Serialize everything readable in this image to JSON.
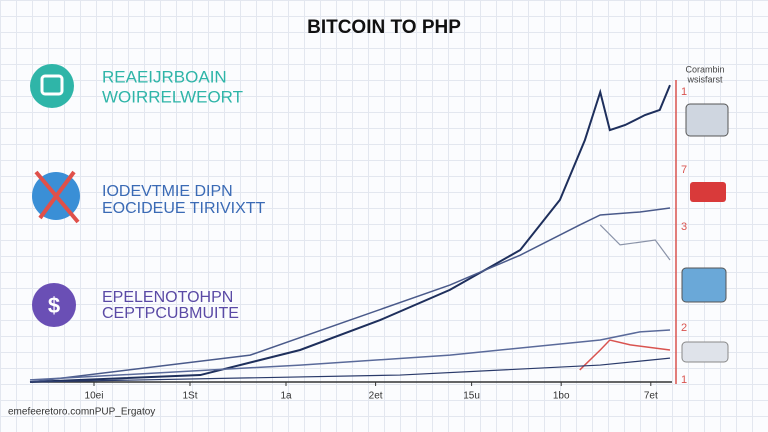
{
  "chart_data": {
    "type": "line",
    "title": "BITCOIN TO PHP",
    "xlim": [
      0,
      100
    ],
    "ylim": [
      0,
      100
    ],
    "xticks": [
      {
        "value": 10,
        "label": "10ei"
      },
      {
        "value": 25,
        "label": "1St"
      },
      {
        "value": 40,
        "label": "1a"
      },
      {
        "value": 54,
        "label": "2et"
      },
      {
        "value": 69,
        "label": "15u"
      },
      {
        "value": 83,
        "label": "1bo"
      },
      {
        "value": 97,
        "label": "7et"
      }
    ],
    "series": [
      {
        "color": "#1e2f5c",
        "width": 2,
        "x": [
          0,
          26.6,
          42.2,
          54.7,
          65.6,
          76.6,
          82.8,
          86.7,
          89.1,
          90.6,
          93,
          96.1,
          98.4,
          100
        ],
        "values": [
          0,
          2.3,
          10.6,
          20.5,
          30.5,
          43.7,
          60.3,
          80.1,
          96,
          83.4,
          85.1,
          88.4,
          90.1,
          98.3
        ]
      },
      {
        "color": "#4a5a8a",
        "width": 1.5,
        "x": [
          0,
          34.4,
          50,
          65.6,
          76.6,
          85.9,
          89.1,
          95.3,
          100
        ],
        "values": [
          0,
          8.9,
          20.5,
          32.1,
          42,
          52,
          55.3,
          56.3,
          57.6
        ]
      },
      {
        "color": "#8a93a8",
        "width": 1.2,
        "x": [
          89.1,
          92.2,
          97.7,
          100
        ],
        "values": [
          52,
          45.4,
          47,
          40.4
        ]
      },
      {
        "color": "#5a6a9a",
        "width": 1.5,
        "x": [
          0,
          42.2,
          65.6,
          89.1,
          95.3,
          100
        ],
        "values": [
          0.7,
          5.6,
          8.9,
          13.9,
          16.6,
          17.2
        ]
      },
      {
        "color": "#d9534f",
        "width": 1.5,
        "x": [
          85.9,
          89.1,
          90.6,
          93.8,
          100
        ],
        "values": [
          4,
          10.6,
          13.9,
          12.3,
          10.6
        ]
      },
      {
        "color": "#2a3a6a",
        "width": 1.2,
        "x": [
          0,
          57.8,
          89.1,
          100
        ],
        "values": [
          0,
          2.3,
          5.6,
          7.9
        ]
      }
    ],
    "side_labels": [
      "1",
      "7",
      "3",
      "2",
      "1"
    ]
  },
  "panels": [
    {
      "line1": "REAEIJRBOAIN",
      "line2": "WOIRRELWEORT"
    },
    {
      "line1": "IODEVTMIE DIPN",
      "line2": "EOCIDEUE TIRIVIXTT"
    },
    {
      "line1": "EPELENOTOHPN",
      "line2": "CEPTPCUBMUITE"
    }
  ],
  "side_note": [
    "Corambin",
    "wsisfarst"
  ],
  "footer": "emefeeretoro.comnPUP_Ergatoy"
}
